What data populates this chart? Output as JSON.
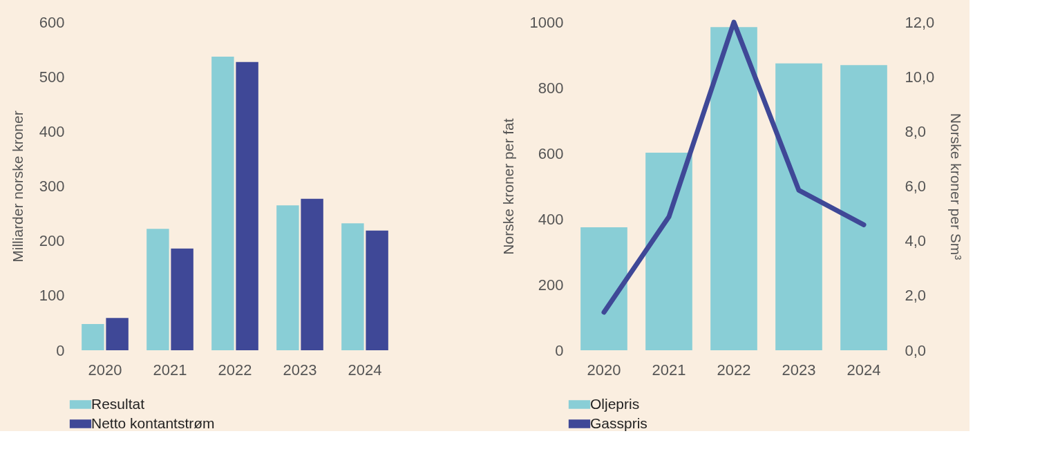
{
  "chart_data": [
    {
      "type": "bar",
      "categories": [
        "2020",
        "2021",
        "2022",
        "2023",
        "2024"
      ],
      "ylabel": "Milliarder norske kroner",
      "ylim": [
        0,
        600
      ],
      "yticks": [
        0,
        100,
        200,
        300,
        400,
        500,
        600
      ],
      "grid": false,
      "legend": "bottom",
      "series": [
        {
          "name": "Resultat",
          "color": "#89ced6",
          "values": [
            48,
            222,
            537,
            265,
            232
          ]
        },
        {
          "name": "Netto kontantstrøm",
          "color": "#3f4897",
          "values": [
            59,
            186,
            527,
            277,
            219
          ]
        }
      ]
    },
    {
      "type": "bar",
      "categories": [
        "2020",
        "2021",
        "2022",
        "2023",
        "2024"
      ],
      "ylabel": "Norske kroner per fat",
      "y2label": "Norske kroner per Sm³",
      "ylim": [
        0,
        1000
      ],
      "yticks": [
        0,
        200,
        400,
        600,
        800,
        1000
      ],
      "y2lim": [
        0,
        12
      ],
      "y2ticks": [
        {
          "value": 0,
          "label": "0,0"
        },
        {
          "value": 2,
          "label": "2,0"
        },
        {
          "value": 4,
          "label": "4,0"
        },
        {
          "value": 6,
          "label": "6,0"
        },
        {
          "value": 8,
          "label": "8,0"
        },
        {
          "value": 10,
          "label": "10,0"
        },
        {
          "value": 12,
          "label": "12,0"
        }
      ],
      "grid": false,
      "legend": "bottom",
      "series": [
        {
          "name": "Oljepris",
          "color": "#89ced6",
          "values": [
            375,
            602,
            985,
            874,
            869
          ]
        },
        {
          "name": "Gasspris",
          "color": "#3f4897",
          "type": "line",
          "axis": "y2",
          "values": [
            1.39,
            4.88,
            12.0,
            5.85,
            4.59
          ]
        }
      ]
    }
  ]
}
